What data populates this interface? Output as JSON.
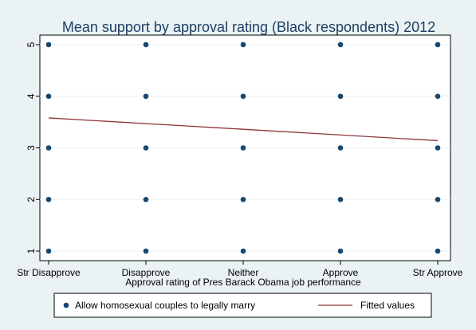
{
  "chart_data": {
    "type": "scatter",
    "title": "Mean support by approval rating (Black respondents) 2012",
    "xlabel": "Approval rating of Pres Barack Obama job performance",
    "ylabel": "",
    "categories": [
      "Str Disapprove",
      "Disapprove",
      "Neither",
      "Approve",
      "Str Approve"
    ],
    "x_ticks": [
      1,
      2,
      3,
      4,
      5
    ],
    "xlim": [
      1,
      5
    ],
    "y_ticks": [
      1,
      2,
      3,
      4,
      5
    ],
    "ylim": [
      1,
      5
    ],
    "grid": true,
    "legend_position": "bottom",
    "series": [
      {
        "name": "Allow homosexual couples to legally marry",
        "kind": "scatter",
        "color": "#1a476f",
        "points": [
          [
            1,
            1
          ],
          [
            1,
            2
          ],
          [
            1,
            3
          ],
          [
            1,
            4
          ],
          [
            1,
            5
          ],
          [
            2,
            1
          ],
          [
            2,
            2
          ],
          [
            2,
            3
          ],
          [
            2,
            4
          ],
          [
            2,
            5
          ],
          [
            3,
            1
          ],
          [
            3,
            2
          ],
          [
            3,
            3
          ],
          [
            3,
            4
          ],
          [
            3,
            5
          ],
          [
            4,
            1
          ],
          [
            4,
            2
          ],
          [
            4,
            3
          ],
          [
            4,
            4
          ],
          [
            4,
            5
          ],
          [
            5,
            1
          ],
          [
            5,
            2
          ],
          [
            5,
            3
          ],
          [
            5,
            4
          ],
          [
            5,
            5
          ]
        ]
      },
      {
        "name": "Fitted values",
        "kind": "line",
        "color": "#90353b",
        "points": [
          [
            1,
            3.58
          ],
          [
            5,
            3.14
          ]
        ]
      }
    ]
  }
}
